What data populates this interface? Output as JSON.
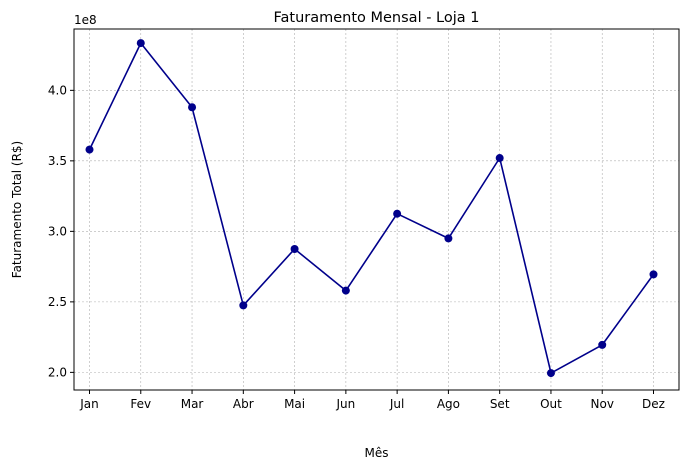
{
  "chart_data": {
    "type": "line",
    "title": "Faturamento Mensal - Loja 1",
    "xlabel": "Mês",
    "ylabel": "Faturamento Total (R$)",
    "offset_label": "1e8",
    "categories": [
      "Jan",
      "Fev",
      "Mar",
      "Abr",
      "Mai",
      "Jun",
      "Jul",
      "Ago",
      "Set",
      "Out",
      "Nov",
      "Dez"
    ],
    "series": [
      {
        "color": "#00008b",
        "values": [
          358000000,
          433500000,
          388000000,
          247500000,
          287500000,
          258000000,
          312500000,
          295000000,
          352000000,
          199500000,
          219500000,
          269500000
        ]
      }
    ],
    "ylim": [
      187500000,
      443500000
    ],
    "yticks": [
      200000000,
      250000000,
      300000000,
      350000000,
      400000000
    ],
    "ytick_labels": [
      "2.0",
      "2.5",
      "3.0",
      "3.5",
      "4.0"
    ],
    "grid": true,
    "marker": "circle"
  }
}
